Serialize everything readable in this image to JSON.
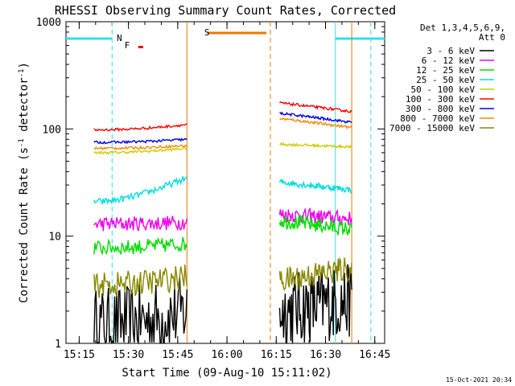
{
  "chart_data": {
    "type": "line",
    "title": "RHESSI Observing Summary Count Rates, Corrected",
    "xlabel": "Start Time (09-Aug-10 15:11:02)",
    "ylabel_main": "Corrected Count Rate (s",
    "ylabel_sup1": "-1",
    "ylabel_mid": " detector",
    "ylabel_sup2": "-1",
    "ylabel_end": ")",
    "ylog": true,
    "ylim": [
      1,
      1000
    ],
    "xlim_minutes": [
      15.183,
      16.8
    ],
    "x_ticks": [
      "15:15",
      "15:30",
      "15:45",
      "16:00",
      "16:15",
      "16:30",
      "16:45"
    ],
    "x_tick_minutes": [
      15.25,
      15.5,
      15.75,
      16.0,
      16.25,
      16.5,
      16.75
    ],
    "y_ticks": [
      "1",
      "10",
      "100",
      "1000"
    ],
    "y_tick_values": [
      1,
      10,
      100,
      1000
    ],
    "detector_label_line1": "Det 1,3,4,5,6,9,",
    "detector_label_line2": "Att 0",
    "timestamp": "15-Oct-2021 20:34",
    "flags": {
      "night_label": "N",
      "flare_label": "F",
      "saa_label": "S"
    },
    "flag_colors": {
      "night": "#33ddee",
      "flare": "#ee0000",
      "saa": "#ee7700"
    },
    "night_intervals_hours": [
      [
        15.183,
        15.417
      ],
      [
        16.55,
        16.8
      ]
    ],
    "saa_interval_hours": [
      15.9,
      16.2
    ],
    "data_gaps_hours": [
      [
        15.183,
        15.325
      ],
      [
        15.797,
        16.267
      ],
      [
        16.633,
        16.8
      ]
    ],
    "segments_hours": [
      [
        15.325,
        15.797
      ],
      [
        16.267,
        16.633
      ]
    ],
    "series": [
      {
        "name": "3 - 6 keV",
        "color": "#000000",
        "seg1": [
          1.5,
          2.0
        ],
        "seg2": [
          2.0,
          2.5
        ],
        "noise": 0.35
      },
      {
        "name": "6 - 12 keV",
        "color": "#ee00ee",
        "seg1": [
          13,
          13.5
        ],
        "seg2": [
          16,
          14.5
        ],
        "noise": 0.07
      },
      {
        "name": "12 - 25 keV",
        "color": "#00dd00",
        "seg1": [
          7.8,
          8.5
        ],
        "seg2": [
          14,
          11.5
        ],
        "noise": 0.07
      },
      {
        "name": "25 - 50 keV",
        "color": "#00dddd",
        "seg1": [
          21,
          35
        ],
        "seg2": [
          32,
          27
        ],
        "noise": 0.03
      },
      {
        "name": "50 - 100 keV",
        "color": "#cccc00",
        "seg1": [
          60,
          66
        ],
        "seg2": [
          72,
          68
        ],
        "noise": 0.012
      },
      {
        "name": "100 - 300 keV",
        "color": "#ff0000",
        "seg1": [
          98,
          110
        ],
        "seg2": [
          175,
          145
        ],
        "noise": 0.012
      },
      {
        "name": "300 - 800 keV",
        "color": "#0000ee",
        "seg1": [
          75,
          80
        ],
        "seg2": [
          140,
          115
        ],
        "noise": 0.012
      },
      {
        "name": "800 - 7000 keV",
        "color": "#ff8800",
        "seg1": [
          66,
          70
        ],
        "seg2": [
          125,
          103
        ],
        "noise": 0.012
      },
      {
        "name": "7000 - 15000 keV",
        "color": "#888800",
        "seg1": [
          3.5,
          4.2
        ],
        "seg2": [
          3.8,
          5.0
        ],
        "noise": 0.12
      }
    ]
  }
}
